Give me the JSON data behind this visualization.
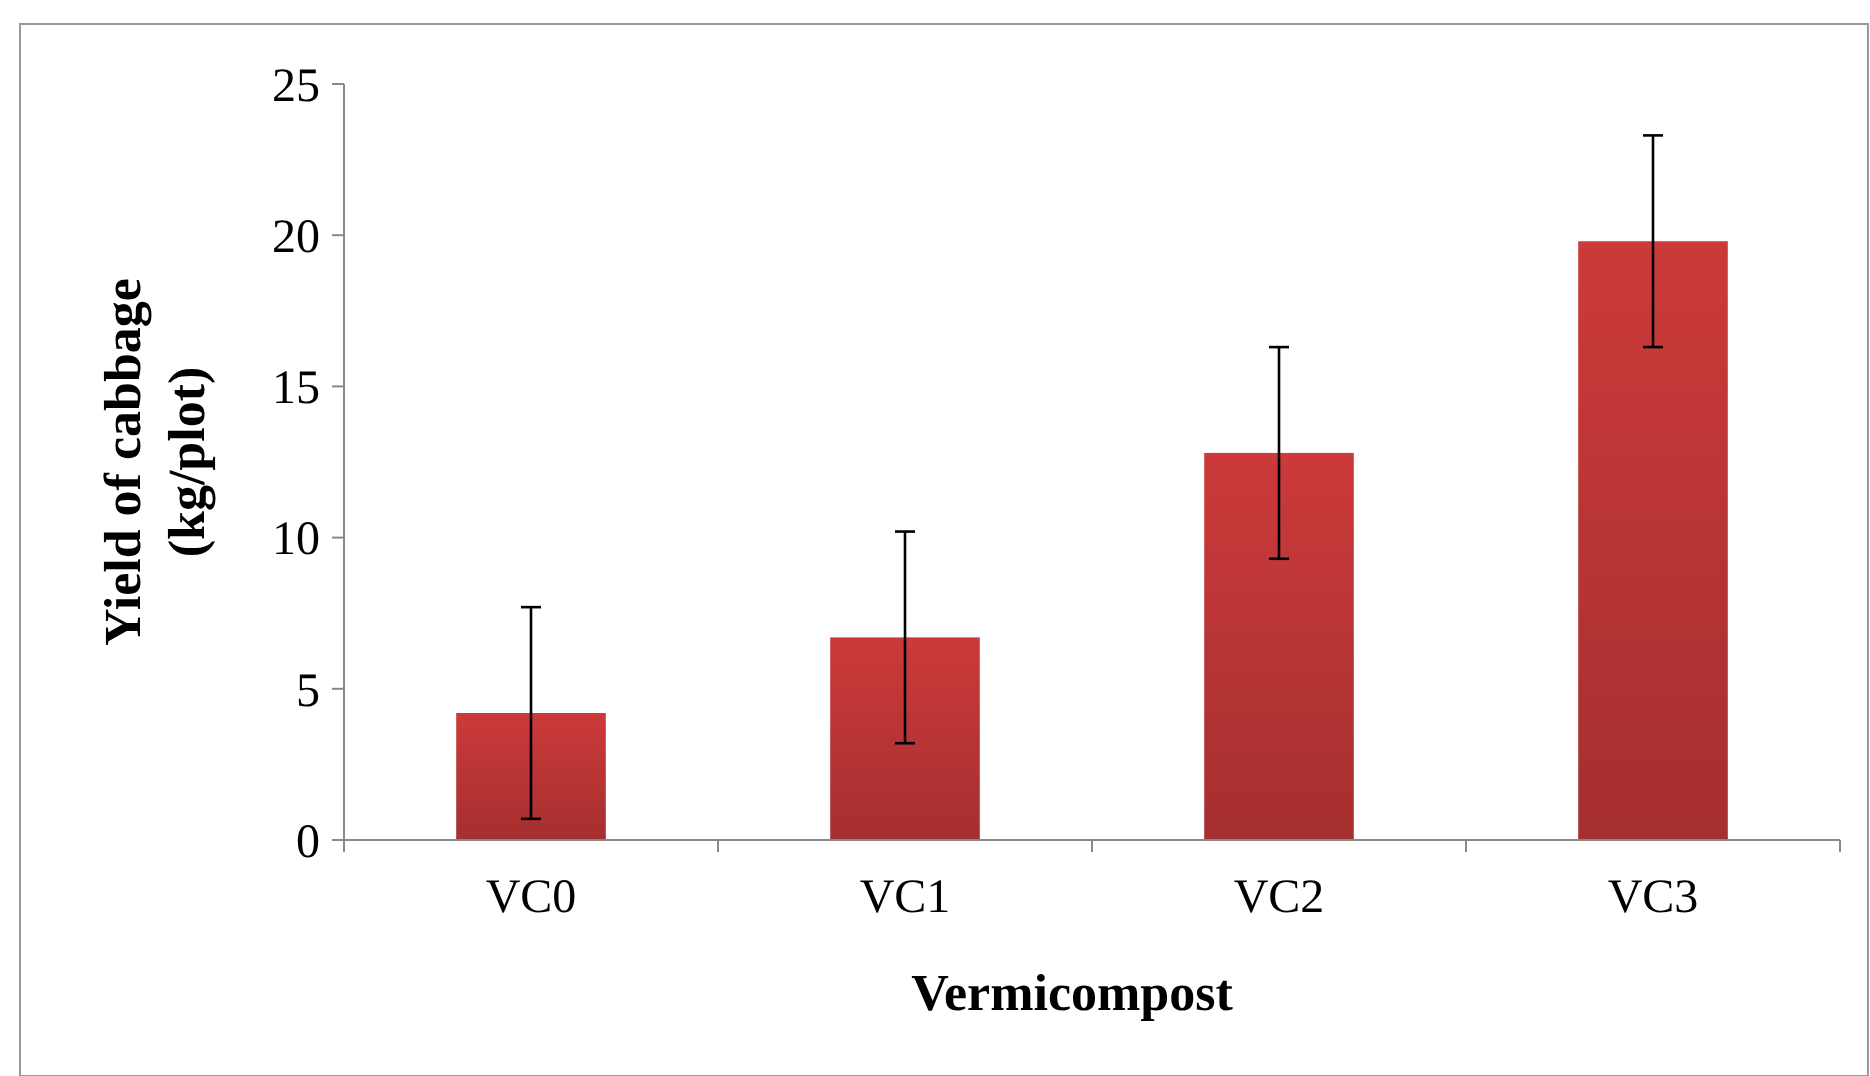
{
  "chart_data": {
    "type": "bar",
    "xlabel": "Vermicompost",
    "ylabel": "Yield of cabbage\n(kg/plot)",
    "categories": [
      "VC0",
      "VC1",
      "VC2",
      "VC3"
    ],
    "values": [
      4.2,
      6.7,
      12.8,
      19.8
    ],
    "errors": [
      3.5,
      3.5,
      3.5,
      3.5
    ],
    "color": "#cc3a3a",
    "ylim": [
      0,
      25
    ],
    "yticks": [
      0,
      5,
      10,
      15,
      20,
      25
    ]
  }
}
